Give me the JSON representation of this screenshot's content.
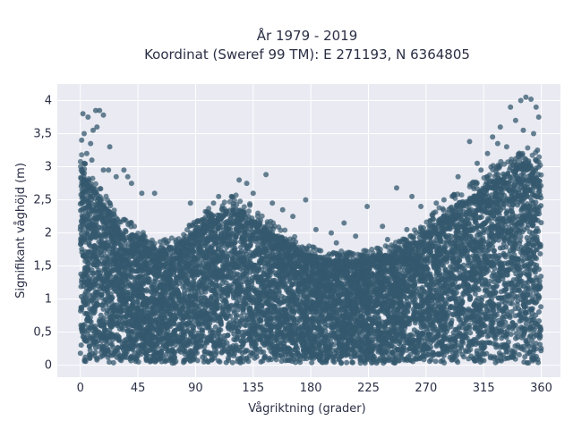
{
  "chart_data": {
    "type": "scatter",
    "title_lines": [
      "År 1979 - 2019",
      "Koordinat (Sweref 99 TM): E 271193, N 6364805"
    ],
    "xlabel": "Vågriktning (grader)",
    "ylabel": "Signifikant våghöjd (m)",
    "xlim": [
      -18,
      375
    ],
    "ylim": [
      -0.18,
      4.25
    ],
    "x_ticks": [
      0,
      45,
      90,
      135,
      180,
      225,
      270,
      315,
      360
    ],
    "x_tick_labels": [
      "0",
      "45",
      "90",
      "135",
      "180",
      "225",
      "270",
      "315",
      "360"
    ],
    "y_ticks": [
      0,
      0.5,
      1,
      1.5,
      2,
      2.5,
      3,
      3.5,
      4
    ],
    "y_tick_labels": [
      "0",
      "0,5",
      "1",
      "1,5",
      "2",
      "2,5",
      "3",
      "3,5",
      "4"
    ],
    "grid": true,
    "marker_color": "#34586e",
    "plot_background": "#e9eaf2",
    "envelope": {
      "x": [
        0,
        10,
        20,
        30,
        45,
        60,
        75,
        90,
        105,
        120,
        130,
        145,
        160,
        175,
        190,
        205,
        220,
        235,
        250,
        265,
        280,
        295,
        310,
        320,
        330,
        340,
        350,
        360
      ],
      "y": [
        3.0,
        2.7,
        2.4,
        2.1,
        1.95,
        1.75,
        1.8,
        2.1,
        2.25,
        2.4,
        2.3,
        2.05,
        1.9,
        1.7,
        1.6,
        1.6,
        1.6,
        1.65,
        1.75,
        1.95,
        2.2,
        2.45,
        2.6,
        2.8,
        2.9,
        3.0,
        3.1,
        2.9
      ]
    },
    "outliers": [
      {
        "x": 2,
        "y": 3.8
      },
      {
        "x": 6,
        "y": 3.75
      },
      {
        "x": 12,
        "y": 3.85
      },
      {
        "x": 15,
        "y": 3.85
      },
      {
        "x": 18,
        "y": 3.78
      },
      {
        "x": 3,
        "y": 3.5
      },
      {
        "x": 10,
        "y": 3.55
      },
      {
        "x": 13,
        "y": 3.6
      },
      {
        "x": 8,
        "y": 3.35
      },
      {
        "x": 1,
        "y": 3.4
      },
      {
        "x": 5,
        "y": 3.2
      },
      {
        "x": 23,
        "y": 3.3
      },
      {
        "x": 3,
        "y": 3.05
      },
      {
        "x": 9,
        "y": 3.1
      },
      {
        "x": 18,
        "y": 2.95
      },
      {
        "x": 22,
        "y": 2.95
      },
      {
        "x": 34,
        "y": 2.95
      },
      {
        "x": 37,
        "y": 2.85
      },
      {
        "x": 28,
        "y": 2.85
      },
      {
        "x": 48,
        "y": 2.6
      },
      {
        "x": 58,
        "y": 2.6
      },
      {
        "x": 40,
        "y": 2.75
      },
      {
        "x": 86,
        "y": 2.45
      },
      {
        "x": 104,
        "y": 2.45
      },
      {
        "x": 108,
        "y": 2.55
      },
      {
        "x": 118,
        "y": 2.55
      },
      {
        "x": 124,
        "y": 2.8
      },
      {
        "x": 130,
        "y": 2.75
      },
      {
        "x": 145,
        "y": 2.88
      },
      {
        "x": 135,
        "y": 2.6
      },
      {
        "x": 150,
        "y": 2.45
      },
      {
        "x": 158,
        "y": 2.35
      },
      {
        "x": 166,
        "y": 2.25
      },
      {
        "x": 176,
        "y": 2.5
      },
      {
        "x": 184,
        "y": 2.05
      },
      {
        "x": 196,
        "y": 2.0
      },
      {
        "x": 206,
        "y": 2.15
      },
      {
        "x": 224,
        "y": 2.4
      },
      {
        "x": 236,
        "y": 2.1
      },
      {
        "x": 247,
        "y": 2.68
      },
      {
        "x": 259,
        "y": 2.55
      },
      {
        "x": 266,
        "y": 2.4
      },
      {
        "x": 278,
        "y": 2.45
      },
      {
        "x": 284,
        "y": 2.5
      },
      {
        "x": 295,
        "y": 2.85
      },
      {
        "x": 304,
        "y": 3.38
      },
      {
        "x": 310,
        "y": 3.05
      },
      {
        "x": 318,
        "y": 3.2
      },
      {
        "x": 322,
        "y": 3.45
      },
      {
        "x": 328,
        "y": 3.6
      },
      {
        "x": 333,
        "y": 3.3
      },
      {
        "x": 336,
        "y": 3.9
      },
      {
        "x": 340,
        "y": 3.7
      },
      {
        "x": 344,
        "y": 4.0
      },
      {
        "x": 348,
        "y": 4.05
      },
      {
        "x": 352,
        "y": 4.02
      },
      {
        "x": 356,
        "y": 3.9
      },
      {
        "x": 358,
        "y": 3.75
      },
      {
        "x": 346,
        "y": 3.55
      },
      {
        "x": 354,
        "y": 3.5
      },
      {
        "x": 326,
        "y": 3.35
      },
      {
        "x": 342,
        "y": 3.15
      },
      {
        "x": 357,
        "y": 3.25
      },
      {
        "x": 313,
        "y": 2.95
      },
      {
        "x": 200,
        "y": 1.85
      },
      {
        "x": 215,
        "y": 1.95
      },
      {
        "x": 240,
        "y": 1.9
      },
      {
        "x": 255,
        "y": 2.05
      }
    ]
  }
}
